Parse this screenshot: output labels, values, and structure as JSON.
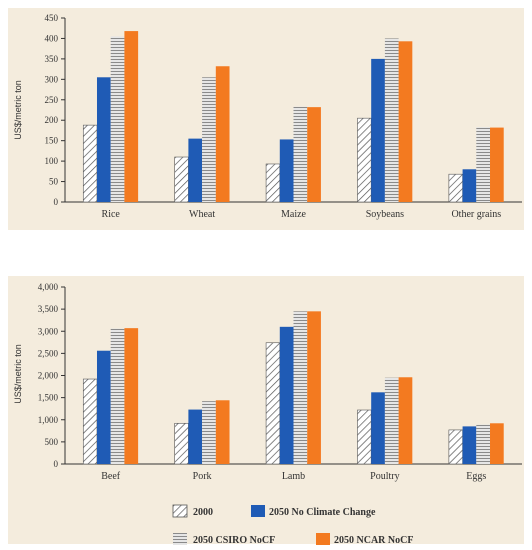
{
  "colors": {
    "panel_bg": "#f4ecdd",
    "axis": "#333333",
    "s2000_stroke": "#555555",
    "s2050_no_cc": "#1f5bb5",
    "s2050_csiro_light": "#e6e6e6",
    "s2050_csiro_dark": "#8a8a8a",
    "s2050_ncar": "#f37a20"
  },
  "legend": {
    "items": [
      {
        "label": "2000",
        "style": "hatch"
      },
      {
        "label": "2050 No Climate Change",
        "style": "solid-blue"
      },
      {
        "label": "2050 CSIRO NoCF",
        "style": "stripes"
      },
      {
        "label": "2050 NCAR NoCF",
        "style": "solid-orange"
      }
    ]
  },
  "chart_data": [
    {
      "type": "bar",
      "title": "",
      "xlabel": "",
      "ylabel": "US$/metric ton",
      "ylim": [
        0,
        450
      ],
      "yticks": [
        0,
        50,
        100,
        150,
        200,
        250,
        300,
        350,
        400,
        450
      ],
      "ytick_labels": [
        "0",
        "50",
        "100",
        "150",
        "200",
        "250",
        "300",
        "350",
        "400",
        "450"
      ],
      "categories": [
        "Rice",
        "Wheat",
        "Maize",
        "Soybeans",
        "Other grains"
      ],
      "series": [
        {
          "name": "2000",
          "values": [
            188,
            110,
            93,
            205,
            68
          ]
        },
        {
          "name": "2050 No Climate Change",
          "values": [
            305,
            155,
            153,
            350,
            80
          ]
        },
        {
          "name": "2050 CSIRO NoCF",
          "values": [
            405,
            305,
            233,
            400,
            183
          ]
        },
        {
          "name": "2050 NCAR NoCF",
          "values": [
            418,
            332,
            232,
            393,
            182
          ]
        }
      ],
      "grid": false
    },
    {
      "type": "bar",
      "title": "",
      "xlabel": "",
      "ylabel": "US$/metric ton",
      "ylim": [
        0,
        4000
      ],
      "yticks": [
        0,
        500,
        1000,
        1500,
        2000,
        2500,
        3000,
        3500,
        4000
      ],
      "ytick_labels": [
        "0",
        "500",
        "1,000",
        "1,500",
        "2,000",
        "2,500",
        "3,000",
        "3,500",
        "4,000"
      ],
      "categories": [
        "Beef",
        "Pork",
        "Lamb",
        "Poultry",
        "Eggs"
      ],
      "series": [
        {
          "name": "2000",
          "values": [
            1920,
            920,
            2740,
            1220,
            770
          ]
        },
        {
          "name": "2050 No Climate Change",
          "values": [
            2560,
            1230,
            3100,
            1620,
            850
          ]
        },
        {
          "name": "2050 CSIRO NoCF",
          "values": [
            3060,
            1420,
            3450,
            1950,
            890
          ]
        },
        {
          "name": "2050 NCAR NoCF",
          "values": [
            3070,
            1440,
            3450,
            1960,
            920
          ]
        }
      ],
      "grid": false,
      "legend": "bottom"
    }
  ]
}
